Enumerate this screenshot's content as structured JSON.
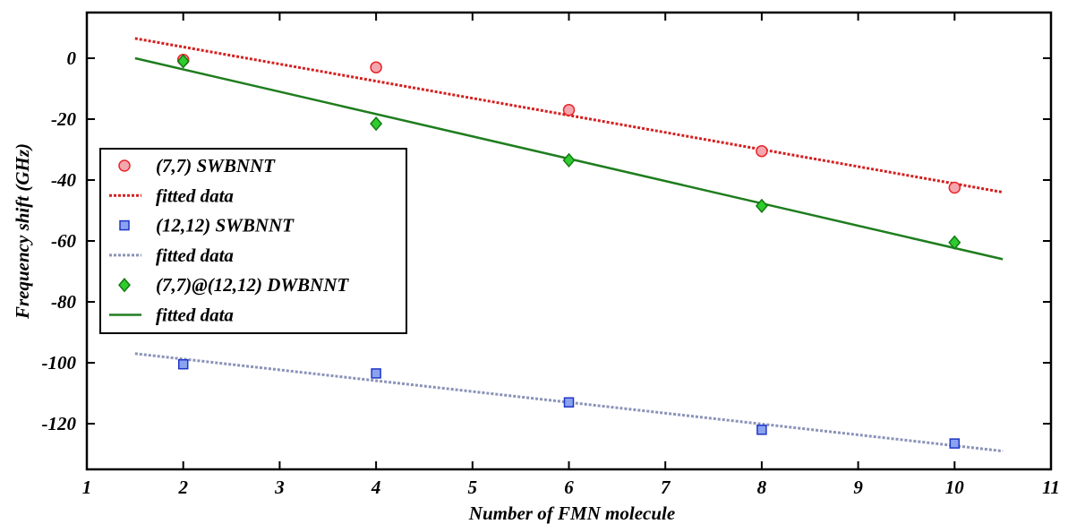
{
  "chart_data": {
    "type": "scatter",
    "xlabel": "Number of FMN molecule",
    "ylabel": "Frequency shift (GHz)",
    "xlim": [
      1,
      11
    ],
    "ylim": [
      -135,
      15
    ],
    "xticks": [
      1,
      2,
      3,
      4,
      5,
      6,
      7,
      8,
      9,
      10,
      11
    ],
    "yticks": [
      -120,
      -100,
      -80,
      -60,
      -40,
      -20,
      0
    ],
    "grid": false,
    "legend_position": "center-left",
    "series": [
      {
        "name": "(7,7) SWBNNT",
        "kind": "markers",
        "marker": "circle",
        "color": "#e8262a",
        "fill": "#f4a6ae",
        "x": [
          2,
          4,
          6,
          8,
          10
        ],
        "y": [
          -0.5,
          -3,
          -17,
          -30.5,
          -42.5
        ]
      },
      {
        "name": "fitted data",
        "kind": "fit-line",
        "style": "dotted",
        "color": "#d42020",
        "x": [
          1.5,
          10.5
        ],
        "y": [
          6.5,
          -44
        ]
      },
      {
        "name": "(12,12) SWBNNT",
        "kind": "markers",
        "marker": "square",
        "color": "#1f35c8",
        "fill": "#8aa3ee",
        "x": [
          2,
          4,
          6,
          8,
          10
        ],
        "y": [
          -100.5,
          -103.5,
          -113,
          -122,
          -126.5
        ]
      },
      {
        "name": "fitted data",
        "kind": "fit-line",
        "style": "dotted",
        "color": "#8a93b8",
        "x": [
          1.5,
          10.5
        ],
        "y": [
          -97,
          -129
        ]
      },
      {
        "name": "(7,7)@(12,12) DWBNNT",
        "kind": "markers",
        "marker": "diamond",
        "color": "#137a13",
        "fill": "#2ecc2e",
        "x": [
          2,
          4,
          6,
          8,
          10
        ],
        "y": [
          -1,
          -21.5,
          -33.5,
          -48.5,
          -60.5
        ]
      },
      {
        "name": "fitted data",
        "kind": "fit-line",
        "style": "solid",
        "color": "#1e7d1e",
        "x": [
          1.5,
          10.5
        ],
        "y": [
          0,
          -66
        ]
      }
    ]
  }
}
